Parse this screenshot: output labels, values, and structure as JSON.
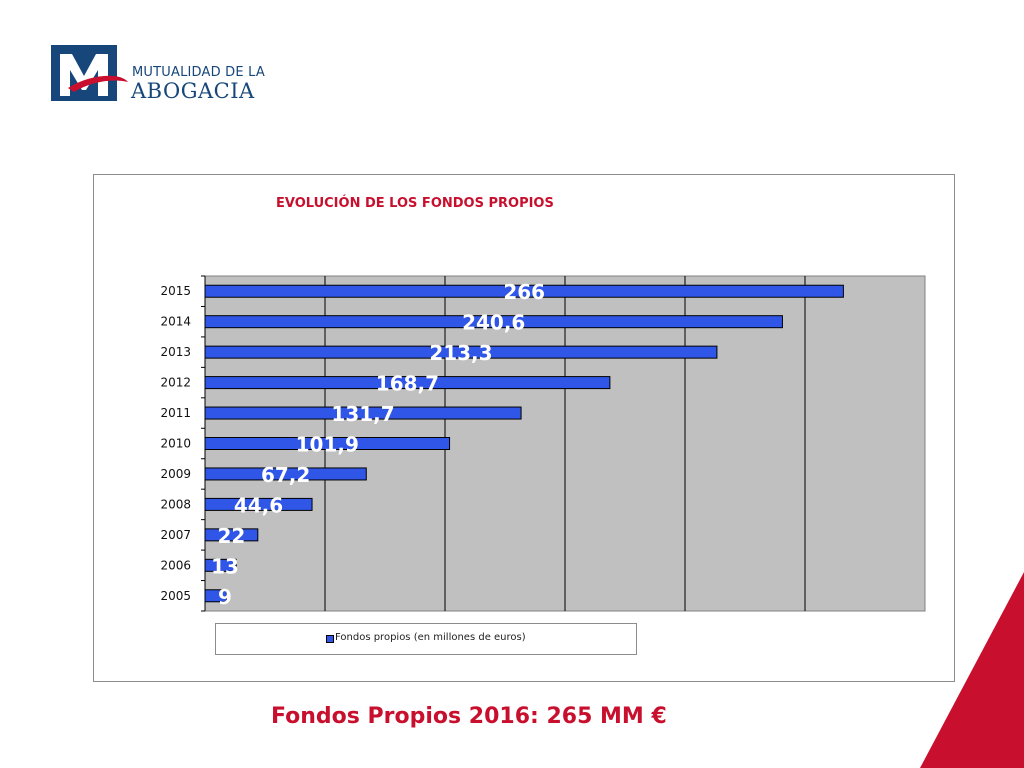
{
  "logo": {
    "line1": "MUTUALIDAD DE LA",
    "line2": "ABOGACIA",
    "primary_color": "#16467a",
    "accent_color": "#c8102e"
  },
  "chart_data": {
    "type": "bar",
    "orientation": "horizontal",
    "title": "EVOLUCIÓN DE LOS FONDOS PROPIOS",
    "categories": [
      "2005",
      "2006",
      "2007",
      "2008",
      "2009",
      "2010",
      "2011",
      "2012",
      "2013",
      "2014",
      "2015"
    ],
    "series": [
      {
        "name": "Fondos propios (en millones de euros)",
        "values": [
          9,
          13,
          22,
          44.6,
          67.2,
          101.9,
          131.7,
          168.7,
          213.3,
          240.6,
          266
        ],
        "labels": [
          "9",
          "13",
          "22",
          "44,6",
          "67,2",
          "101,9",
          "131,7",
          "168,7",
          "213,3",
          "240,6",
          "266"
        ],
        "color": "#3056e8"
      }
    ],
    "xlim": [
      0,
      300
    ],
    "grid": true,
    "plot_background": "#c0c0c0",
    "legend_position": "bottom"
  },
  "footer": {
    "text": "Fondos Propios 2016: 265 MM €",
    "color": "#c8102e"
  },
  "decoration_color": "#c8102e"
}
